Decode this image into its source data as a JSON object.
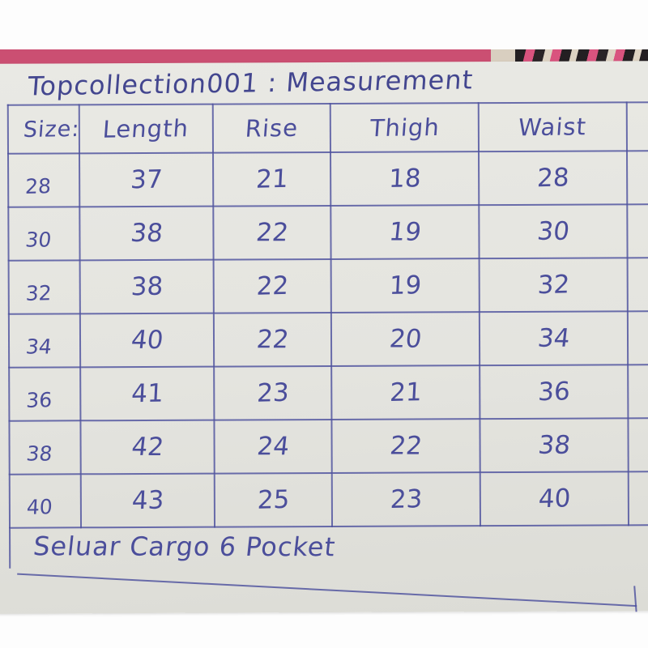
{
  "photo": {
    "title": "Topcollection001 : Measurement",
    "footer_note": "Seluar Cargo 6 Pocket"
  },
  "table": {
    "headers": {
      "size": "Size:",
      "length": "Length",
      "rise": "Rise",
      "thigh": "Thigh",
      "waist": "Waist"
    },
    "rows": [
      {
        "size": "28",
        "length": "37",
        "rise": "21",
        "thigh": "18",
        "waist": "28"
      },
      {
        "size": "30",
        "length": "38",
        "rise": "22",
        "thigh": "19",
        "waist": "30"
      },
      {
        "size": "32",
        "length": "38",
        "rise": "22",
        "thigh": "19",
        "waist": "32"
      },
      {
        "size": "34",
        "length": "40",
        "rise": "22",
        "thigh": "20",
        "waist": "34"
      },
      {
        "size": "36",
        "length": "41",
        "rise": "23",
        "thigh": "21",
        "waist": "36"
      },
      {
        "size": "38",
        "length": "42",
        "rise": "24",
        "thigh": "22",
        "waist": "38"
      },
      {
        "size": "40",
        "length": "43",
        "rise": "25",
        "thigh": "23",
        "waist": "40"
      }
    ]
  },
  "colors": {
    "ink": "#4b4e9b",
    "paper": "#e5e5e0",
    "fabric_pink": "#cb4f72",
    "fabric_black": "#241f22",
    "fabric_cream": "#d9cfc0"
  }
}
